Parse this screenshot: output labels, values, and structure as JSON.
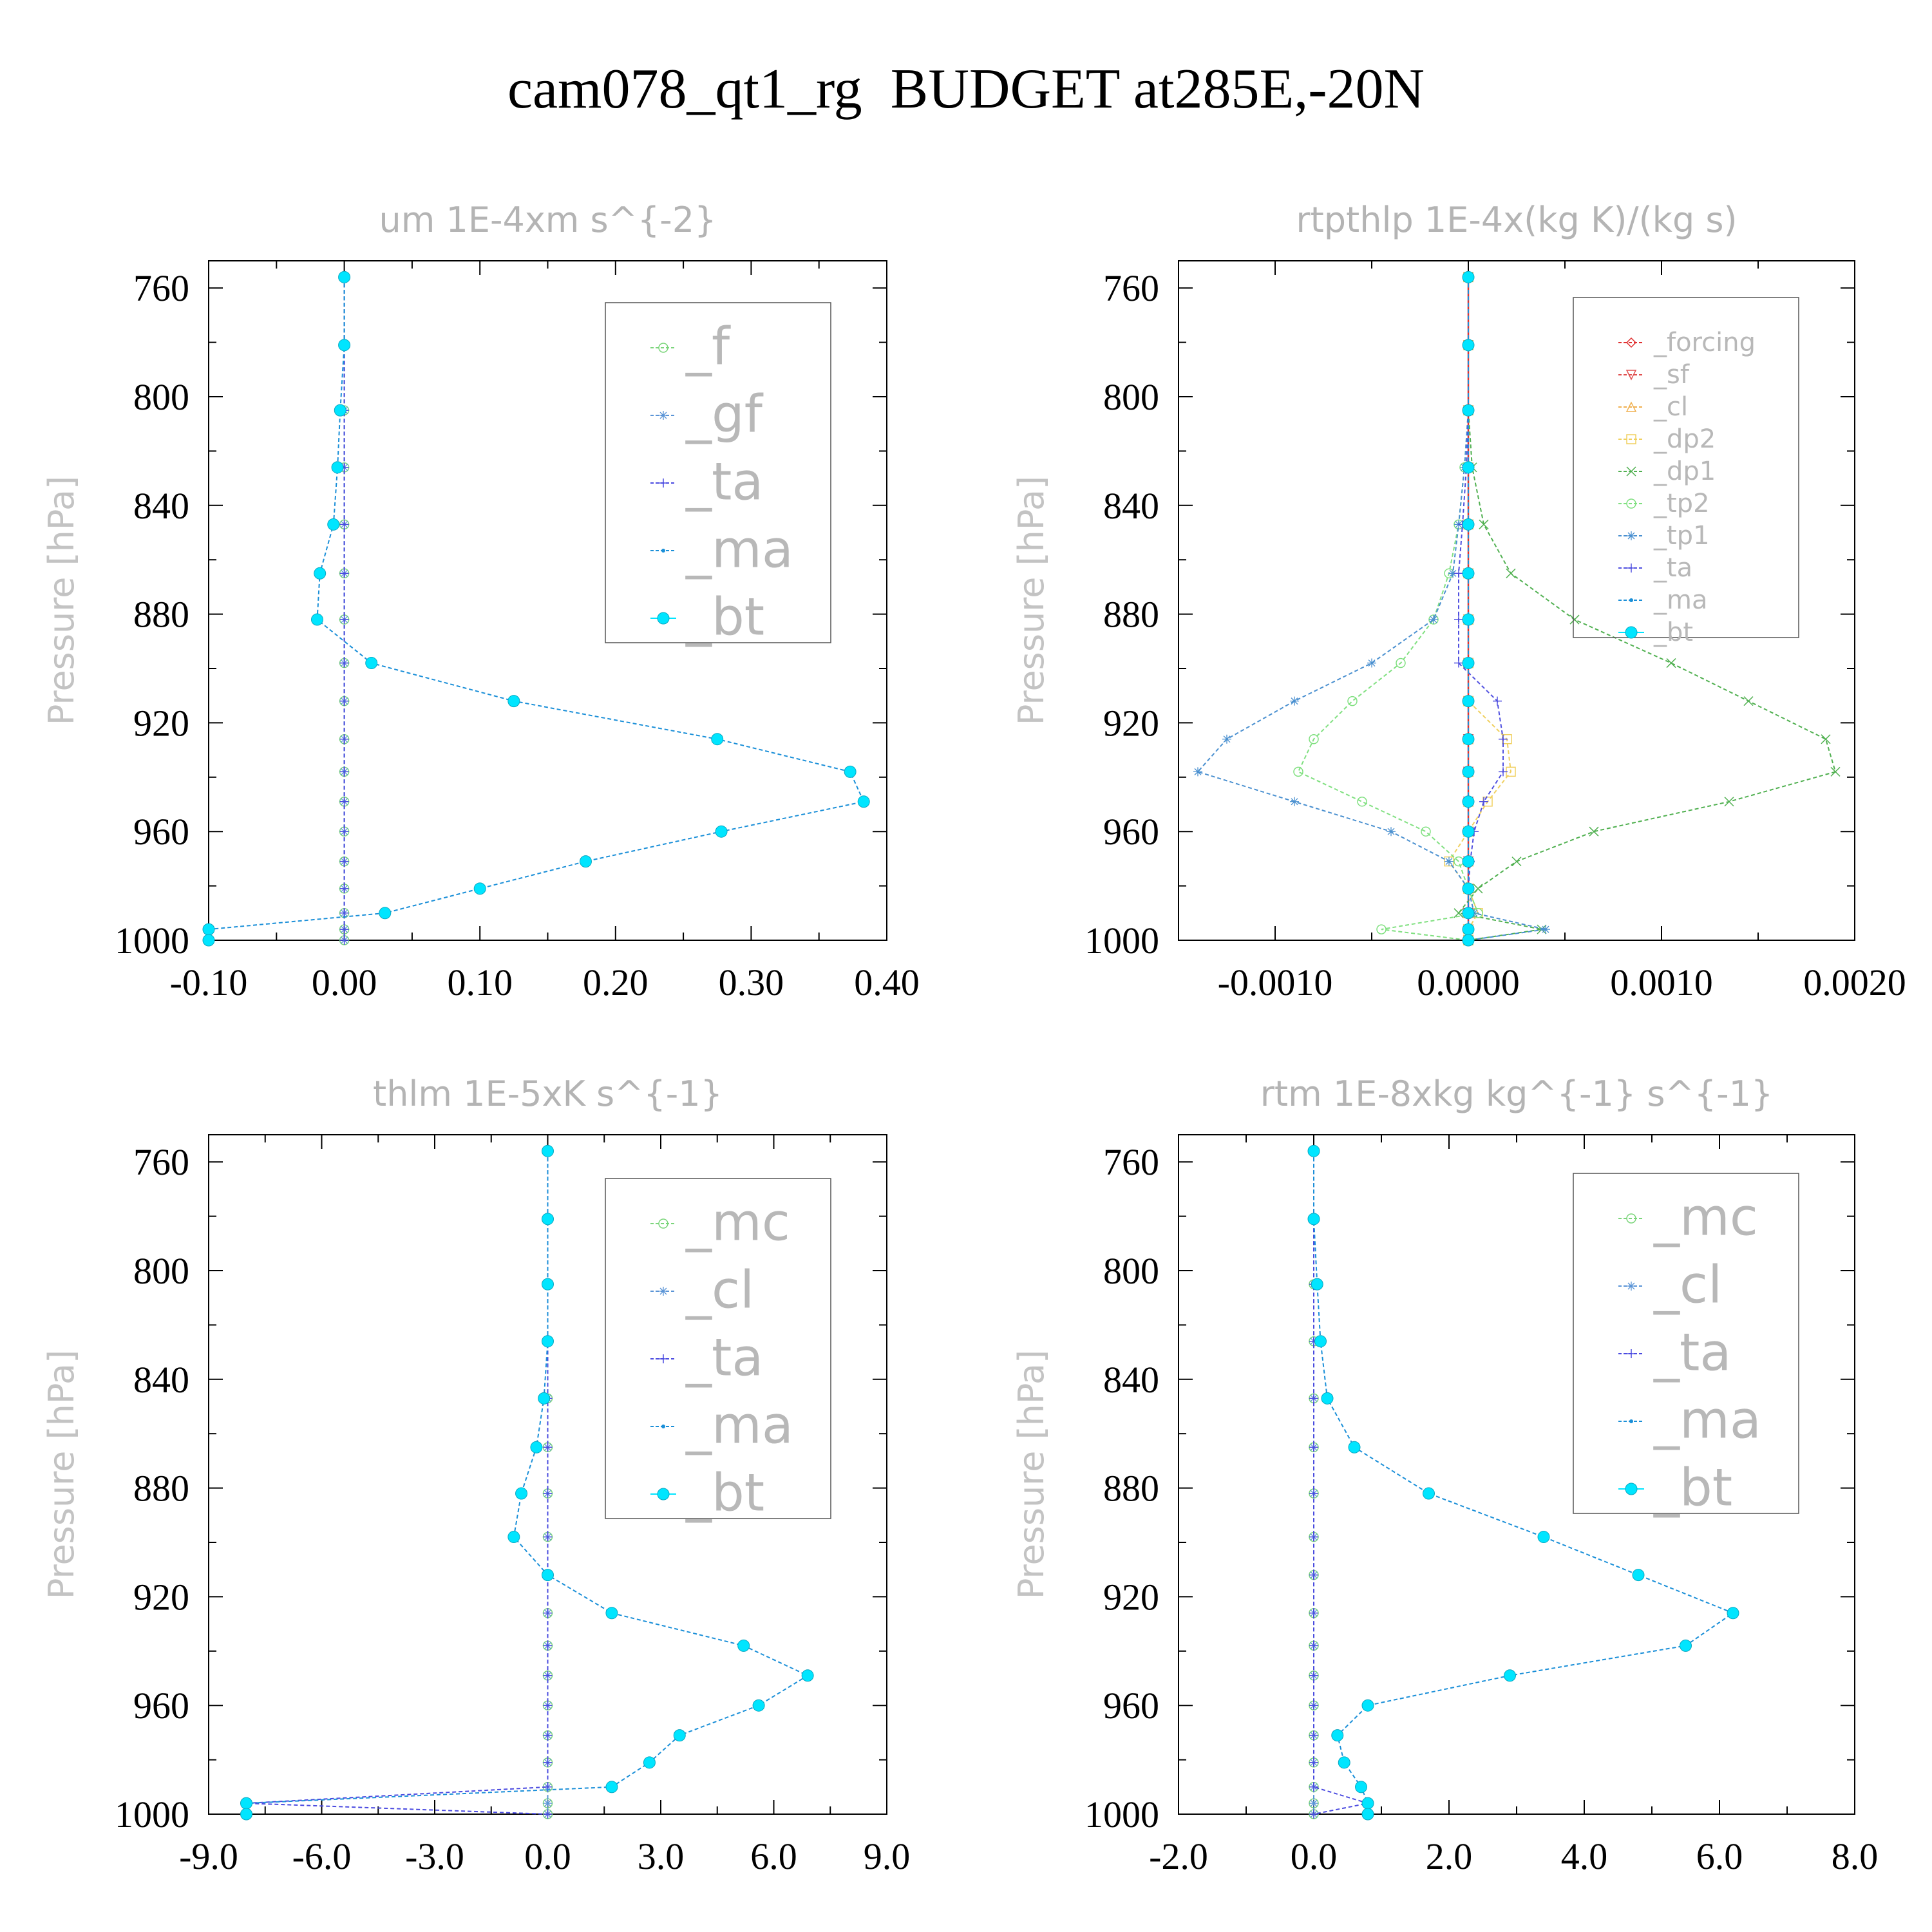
{
  "title": "cam078_qt1_rg  BUDGET at285E,-20N",
  "chart_data": [
    {
      "type": "line",
      "title": "um  1E-4xm s^{-2}",
      "ylabel": "Pressure [hPa]",
      "xlim": [
        -0.1,
        0.4
      ],
      "xticks": [
        "-0.10",
        "0.00",
        "0.10",
        "0.20",
        "0.30",
        "0.40"
      ],
      "xtick_values": [
        -0.1,
        0.0,
        0.1,
        0.2,
        0.3,
        0.4
      ],
      "ylim": [
        1000,
        750
      ],
      "yticks": [
        "760",
        "800",
        "840",
        "880",
        "920",
        "960",
        "1000"
      ],
      "ytick_values": [
        760,
        800,
        840,
        880,
        920,
        960,
        1000
      ],
      "pressure": [
        756,
        781,
        805,
        826,
        847,
        865,
        882,
        898,
        912,
        926,
        938,
        949,
        960,
        971,
        981,
        990,
        996,
        1000
      ],
      "series": [
        {
          "name": "_f",
          "color": "#7bd57b",
          "marker": "circle-open",
          "values": [
            0,
            0,
            0,
            0,
            0,
            0,
            0,
            0,
            0,
            0,
            0,
            0,
            0,
            0,
            0,
            0,
            0,
            0
          ]
        },
        {
          "name": "_gf",
          "color": "#5a94d6",
          "marker": "asterisk",
          "values": [
            0,
            0,
            0,
            0,
            0,
            0,
            0,
            0,
            0,
            0,
            0,
            0,
            0,
            0,
            0,
            0,
            0,
            0
          ]
        },
        {
          "name": "_ta",
          "color": "#4a4ae0",
          "marker": "plus",
          "values": [
            0,
            0,
            0,
            0,
            0,
            0,
            0,
            0,
            0,
            0,
            0,
            0,
            0,
            0,
            0,
            0,
            0,
            0.0
          ]
        },
        {
          "name": "_ma",
          "color": "#1a8fd8",
          "marker": "dot",
          "values": [
            0,
            0,
            -0.003,
            -0.005,
            -0.008,
            -0.018,
            -0.02,
            0.02,
            0.125,
            0.275,
            0.373,
            0.383,
            0.278,
            0.178,
            0.1,
            0.03,
            -0.1,
            -0.1
          ]
        },
        {
          "name": "_bt",
          "color": "#00e5ff",
          "marker": "filled",
          "values": [
            0,
            0,
            -0.003,
            -0.005,
            -0.008,
            -0.018,
            -0.02,
            0.02,
            0.125,
            0.275,
            0.373,
            0.383,
            0.278,
            0.178,
            0.1,
            0.03,
            -0.1,
            -0.1
          ]
        }
      ]
    },
    {
      "type": "line",
      "title": "rtpthlp  1E-4x(kg K)/(kg s)",
      "ylabel": "Pressure [hPa]",
      "xlim": [
        -0.0015,
        0.002
      ],
      "xticks": [
        "-0.0010",
        "0.0000",
        "0.0010",
        "0.0020"
      ],
      "xtick_values": [
        -0.001,
        0.0,
        0.001,
        0.002
      ],
      "ylim": [
        1000,
        750
      ],
      "yticks": [
        "760",
        "800",
        "840",
        "880",
        "920",
        "960",
        "1000"
      ],
      "ytick_values": [
        760,
        800,
        840,
        880,
        920,
        960,
        1000
      ],
      "pressure": [
        756,
        781,
        805,
        826,
        847,
        865,
        882,
        898,
        912,
        926,
        938,
        949,
        960,
        971,
        981,
        990,
        996,
        1000
      ],
      "series": [
        {
          "name": "_forcing",
          "color": "#e03030",
          "marker": "diamond-open",
          "values": [
            0,
            0,
            0,
            0,
            0,
            0,
            0,
            0,
            0,
            0,
            0,
            0,
            0,
            0,
            0,
            0,
            0,
            0
          ]
        },
        {
          "name": "_sf",
          "color": "#e05050",
          "marker": "triangle-down",
          "values": [
            0,
            0,
            0,
            0,
            0,
            0,
            0,
            0,
            0,
            0,
            0,
            0,
            0,
            0,
            0,
            0,
            0,
            0
          ]
        },
        {
          "name": "_cl",
          "color": "#f0b050",
          "marker": "triangle-up",
          "values": [
            0,
            0,
            0,
            0,
            0,
            0,
            0,
            0,
            0,
            0,
            0,
            0,
            0,
            0,
            0,
            0,
            0,
            0
          ]
        },
        {
          "name": "_dp2",
          "color": "#f0d060",
          "marker": "square-open",
          "values": [
            0,
            0,
            0,
            0,
            0,
            0,
            0,
            0,
            0,
            0.0002,
            0.00022,
            0.0001,
            0,
            -0.0001,
            0,
            5e-05,
            0,
            0
          ]
        },
        {
          "name": "_dp1",
          "color": "#50b050",
          "marker": "x",
          "values": [
            0,
            0,
            0,
            2e-05,
            8e-05,
            0.00022,
            0.00055,
            0.00105,
            0.00145,
            0.00185,
            0.0019,
            0.00135,
            0.00065,
            0.00025,
            5e-05,
            -5e-05,
            0.00038,
            0
          ]
        },
        {
          "name": "_tp2",
          "color": "#80e080",
          "marker": "circle-open",
          "values": [
            0,
            0,
            0,
            -2e-05,
            -5e-05,
            -0.0001,
            -0.00018,
            -0.00035,
            -0.0006,
            -0.0008,
            -0.00088,
            -0.00055,
            -0.00022,
            -5e-05,
            0,
            5e-05,
            -0.00045,
            0
          ]
        },
        {
          "name": "_tp1",
          "color": "#4a90d0",
          "marker": "asterisk",
          "values": [
            0,
            0,
            0,
            -2e-05,
            -5e-05,
            -8e-05,
            -0.00018,
            -0.0005,
            -0.0009,
            -0.00125,
            -0.0014,
            -0.0009,
            -0.0004,
            -0.0001,
            0,
            3e-05,
            0.0004,
            0
          ]
        },
        {
          "name": "_ta",
          "color": "#5050e0",
          "marker": "plus",
          "values": [
            0,
            0,
            0,
            -1e-05,
            -3e-05,
            -5e-05,
            -5e-05,
            -5e-05,
            0.00015,
            0.00018,
            0.00018,
            8e-05,
            3e-05,
            1e-05,
            0,
            0,
            0,
            0
          ]
        },
        {
          "name": "_ma",
          "color": "#1a8fd8",
          "marker": "dot",
          "values": [
            0,
            0,
            0,
            0,
            0,
            0,
            0,
            0,
            0,
            0,
            0,
            0,
            0,
            0,
            0,
            0,
            0,
            0
          ]
        },
        {
          "name": "_bt",
          "color": "#00e5ff",
          "marker": "filled",
          "values": [
            0,
            0,
            0,
            0,
            0,
            0,
            0,
            0,
            0,
            0,
            0,
            0,
            0,
            0,
            0,
            0,
            0,
            0
          ]
        }
      ]
    },
    {
      "type": "line",
      "title": "thlm  1E-5xK s^{-1}",
      "ylabel": "Pressure [hPa]",
      "xlim": [
        -9.0,
        9.0
      ],
      "xticks": [
        "-9.0",
        "-6.0",
        "-3.0",
        "0.0",
        "3.0",
        "6.0",
        "9.0"
      ],
      "xtick_values": [
        -9.0,
        -6.0,
        -3.0,
        0.0,
        3.0,
        6.0,
        9.0
      ],
      "ylim": [
        1000,
        750
      ],
      "yticks": [
        "760",
        "800",
        "840",
        "880",
        "920",
        "960",
        "1000"
      ],
      "ytick_values": [
        760,
        800,
        840,
        880,
        920,
        960,
        1000
      ],
      "pressure": [
        756,
        781,
        805,
        826,
        847,
        865,
        882,
        898,
        912,
        926,
        938,
        949,
        960,
        971,
        981,
        990,
        996,
        1000
      ],
      "series": [
        {
          "name": "_mc",
          "color": "#7bd57b",
          "marker": "circle-open",
          "values": [
            0,
            0,
            0,
            0,
            0,
            0,
            0,
            0,
            0,
            0,
            0,
            0,
            0,
            0,
            0,
            0,
            0,
            0
          ]
        },
        {
          "name": "_cl",
          "color": "#5a94d6",
          "marker": "asterisk",
          "values": [
            0,
            0,
            0,
            0,
            0,
            0,
            0,
            0,
            0,
            0,
            0,
            0,
            0,
            0,
            0,
            0,
            0,
            0
          ]
        },
        {
          "name": "_ta",
          "color": "#4a4ae0",
          "marker": "plus",
          "values": [
            0,
            0,
            0,
            0,
            0,
            0,
            0,
            0,
            0,
            0,
            0,
            0,
            0,
            0,
            0,
            0,
            -8.0,
            0.0
          ]
        },
        {
          "name": "_ma",
          "color": "#1a8fd8",
          "marker": "dot",
          "values": [
            0,
            0,
            0,
            0,
            -0.1,
            -0.3,
            -0.7,
            -0.9,
            0.0,
            1.7,
            5.2,
            6.9,
            5.6,
            3.5,
            2.7,
            1.7,
            -8.0,
            -8.0
          ]
        },
        {
          "name": "_bt",
          "color": "#00e5ff",
          "marker": "filled",
          "values": [
            0,
            0,
            0,
            0,
            -0.1,
            -0.3,
            -0.7,
            -0.9,
            0.0,
            1.7,
            5.2,
            6.9,
            5.6,
            3.5,
            2.7,
            1.7,
            -8.0,
            -8.0
          ]
        }
      ]
    },
    {
      "type": "line",
      "title": "rtm  1E-8xkg kg^{-1} s^{-1}",
      "ylabel": "Pressure [hPa]",
      "xlim": [
        -2.0,
        8.0
      ],
      "xticks": [
        "-2.0",
        "0.0",
        "2.0",
        "4.0",
        "6.0",
        "8.0"
      ],
      "xtick_values": [
        -2.0,
        0.0,
        2.0,
        4.0,
        6.0,
        8.0
      ],
      "ylim": [
        1000,
        750
      ],
      "yticks": [
        "760",
        "800",
        "840",
        "880",
        "920",
        "960",
        "1000"
      ],
      "ytick_values": [
        760,
        800,
        840,
        880,
        920,
        960,
        1000
      ],
      "pressure": [
        756,
        781,
        805,
        826,
        847,
        865,
        882,
        898,
        912,
        926,
        938,
        949,
        960,
        971,
        981,
        990,
        996,
        1000
      ],
      "series": [
        {
          "name": "_mc",
          "color": "#7bd57b",
          "marker": "circle-open",
          "values": [
            0,
            0,
            0,
            0,
            0,
            0,
            0,
            0,
            0,
            0,
            0,
            0,
            0,
            0,
            0,
            0,
            0,
            0
          ]
        },
        {
          "name": "_cl",
          "color": "#5a94d6",
          "marker": "asterisk",
          "values": [
            0,
            0,
            0,
            0,
            0,
            0,
            0,
            0,
            0,
            0,
            0,
            0,
            0,
            0,
            0,
            0,
            0,
            0
          ]
        },
        {
          "name": "_ta",
          "color": "#4a4ae0",
          "marker": "plus",
          "values": [
            0,
            0,
            0,
            0,
            0,
            0,
            0,
            0,
            0,
            0,
            0,
            0,
            0,
            0,
            0,
            0,
            0.8,
            0.0
          ]
        },
        {
          "name": "_ma",
          "color": "#1a8fd8",
          "marker": "dot",
          "values": [
            0,
            0,
            0.05,
            0.1,
            0.2,
            0.6,
            1.7,
            3.4,
            4.8,
            6.2,
            5.5,
            2.9,
            0.8,
            0.35,
            0.45,
            0.7,
            0.8,
            0.8
          ]
        },
        {
          "name": "_bt",
          "color": "#00e5ff",
          "marker": "filled",
          "values": [
            0,
            0,
            0.05,
            0.1,
            0.2,
            0.6,
            1.7,
            3.4,
            4.8,
            6.2,
            5.5,
            2.9,
            0.8,
            0.35,
            0.45,
            0.7,
            0.8,
            0.8
          ]
        }
      ]
    }
  ]
}
